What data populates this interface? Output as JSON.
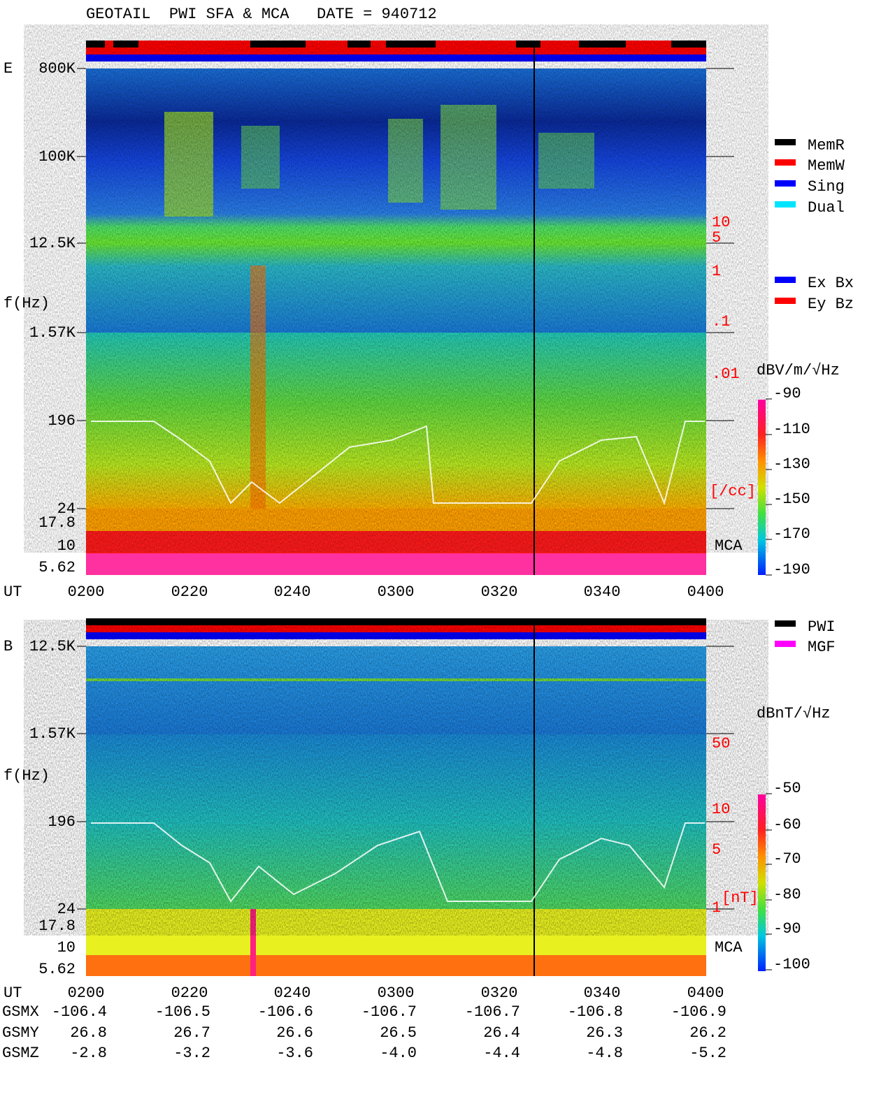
{
  "header": {
    "title": "GEOTAIL  PWI SFA & MCA   DATE = 940712"
  },
  "panel_e": {
    "label": "E",
    "y_axis_label": "f(Hz)",
    "freq_labels": [
      "800K",
      "100K",
      "12.5K",
      "1.57K",
      "196",
      "24",
      "17.8",
      "10",
      "5.62"
    ],
    "density_labels": [
      "10",
      "5",
      "1",
      ".1",
      ".01"
    ],
    "density_unit": "[/cc]",
    "mca_label": "MCA",
    "ut_label": "UT",
    "time_labels": [
      "0200",
      "0220",
      "0240",
      "0300",
      "0320",
      "0340",
      "0400"
    ],
    "colorbar_title": "dBV/m/√Hz",
    "colorbar_labels": [
      "-90",
      "-110",
      "-130",
      "-150",
      "-170",
      "-190"
    ]
  },
  "legend_modes": [
    {
      "label": "MemR",
      "color": "#000000"
    },
    {
      "label": "MemW",
      "color": "#ff0000"
    },
    {
      "label": "Sing",
      "color": "#0000ff"
    },
    {
      "label": "Dual",
      "color": "#00e5ff"
    }
  ],
  "legend_antennas": [
    {
      "label": "Ex Bx",
      "color": "#0000ff"
    },
    {
      "label": "Ey Bz",
      "color": "#ff0000"
    }
  ],
  "panel_b": {
    "label": "B",
    "y_axis_label": "f(Hz)",
    "freq_labels": [
      "12.5K",
      "1.57K",
      "196",
      "24",
      "17.8",
      "10",
      "5.62"
    ],
    "field_labels": [
      "50",
      "10",
      "5",
      "1"
    ],
    "field_unit": "[nT]",
    "mca_label": "MCA",
    "ut_label": "UT",
    "time_labels": [
      "0200",
      "0220",
      "0240",
      "0300",
      "0320",
      "0340",
      "0400"
    ],
    "colorbar_title": "dBnT/√Hz",
    "colorbar_labels": [
      "-50",
      "-60",
      "-70",
      "-80",
      "-90",
      "-100"
    ]
  },
  "legend_instruments": [
    {
      "label": "PWI",
      "color": "#000000"
    },
    {
      "label": "MGF",
      "color": "#ff00ff"
    }
  ],
  "orbit": {
    "rows": [
      {
        "label": "GSMX",
        "values": [
          "-106.4",
          "-106.5",
          "-106.6",
          "-106.7",
          "-106.7",
          "-106.8",
          "-106.9"
        ]
      },
      {
        "label": "GSMY",
        "values": [
          "26.8",
          "26.7",
          "26.6",
          "26.5",
          "26.4",
          "26.3",
          "26.2"
        ]
      },
      {
        "label": "GSMZ",
        "values": [
          "-2.8",
          "-3.2",
          "-3.6",
          "-4.0",
          "-4.4",
          "-4.8",
          "-5.2"
        ]
      }
    ]
  }
}
